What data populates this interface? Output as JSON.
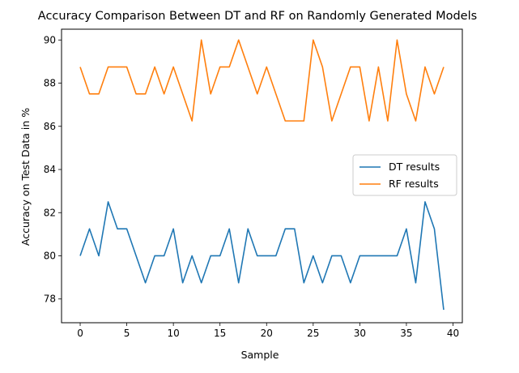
{
  "chart_data": {
    "type": "line",
    "title": "Accuracy Comparison Between DT and RF on Randomly Generated Models",
    "xlabel": "Sample",
    "ylabel": "Accuracy on Test Data in %",
    "x": [
      0,
      1,
      2,
      3,
      4,
      5,
      6,
      7,
      8,
      9,
      10,
      11,
      12,
      13,
      14,
      15,
      16,
      17,
      18,
      19,
      20,
      21,
      22,
      23,
      24,
      25,
      26,
      27,
      28,
      29,
      30,
      31,
      32,
      33,
      34,
      35,
      36,
      37,
      38,
      39
    ],
    "xlim": [
      -2,
      41
    ],
    "ylim": [
      76.9,
      90.5
    ],
    "xticks": [
      0,
      5,
      10,
      15,
      20,
      25,
      30,
      35,
      40
    ],
    "yticks": [
      78,
      80,
      82,
      84,
      86,
      88,
      90
    ],
    "grid": false,
    "legend_position": "center-right",
    "series": [
      {
        "name": "DT results",
        "color": "#1f77b4",
        "values": [
          80,
          81.25,
          80,
          82.5,
          81.25,
          81.25,
          80,
          78.75,
          80,
          80,
          81.25,
          78.75,
          80,
          78.75,
          80,
          80,
          81.25,
          78.75,
          81.25,
          80,
          80,
          80,
          81.25,
          81.25,
          78.75,
          80,
          78.75,
          80,
          80,
          78.75,
          80,
          80,
          80,
          80,
          80,
          81.25,
          78.75,
          82.5,
          81.25,
          77.5
        ]
      },
      {
        "name": "RF results",
        "color": "#ff7f0e",
        "values": [
          88.75,
          87.5,
          87.5,
          88.75,
          88.75,
          88.75,
          87.5,
          87.5,
          88.75,
          87.5,
          88.75,
          87.5,
          86.25,
          90,
          87.5,
          88.75,
          88.75,
          90,
          88.75,
          87.5,
          88.75,
          87.5,
          86.25,
          86.25,
          86.25,
          90,
          88.75,
          86.25,
          87.5,
          88.75,
          88.75,
          86.25,
          88.75,
          86.25,
          90,
          87.5,
          86.25,
          88.75,
          87.5,
          88.75
        ]
      }
    ]
  }
}
